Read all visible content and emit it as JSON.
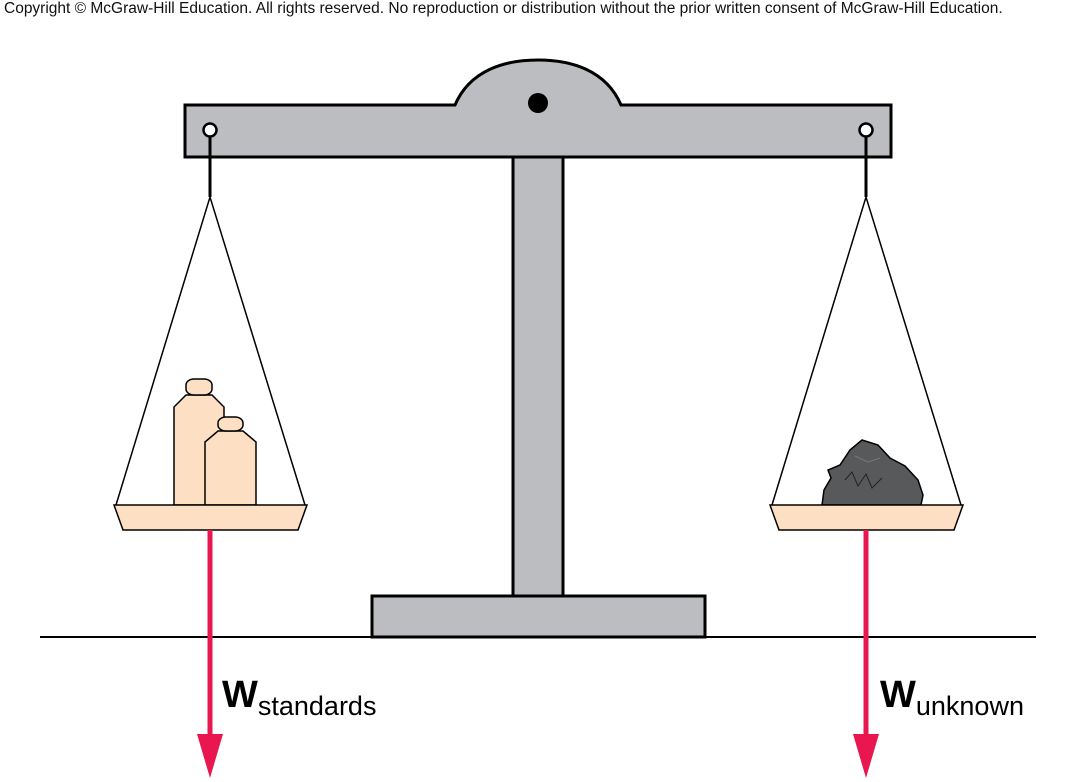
{
  "copyright": "Copyright © McGraw-Hill Education.  All rights reserved. No reproduction or distribution without the prior written consent of McGraw-Hill Education.",
  "labels": {
    "left": {
      "main": "W",
      "sub": "standards"
    },
    "right": {
      "main": "W",
      "sub": "unknown"
    }
  },
  "colors": {
    "metal": "#bcbdc0",
    "pan": "#fde0c3",
    "arrow": "#e8174f",
    "rock": "#58595b"
  }
}
